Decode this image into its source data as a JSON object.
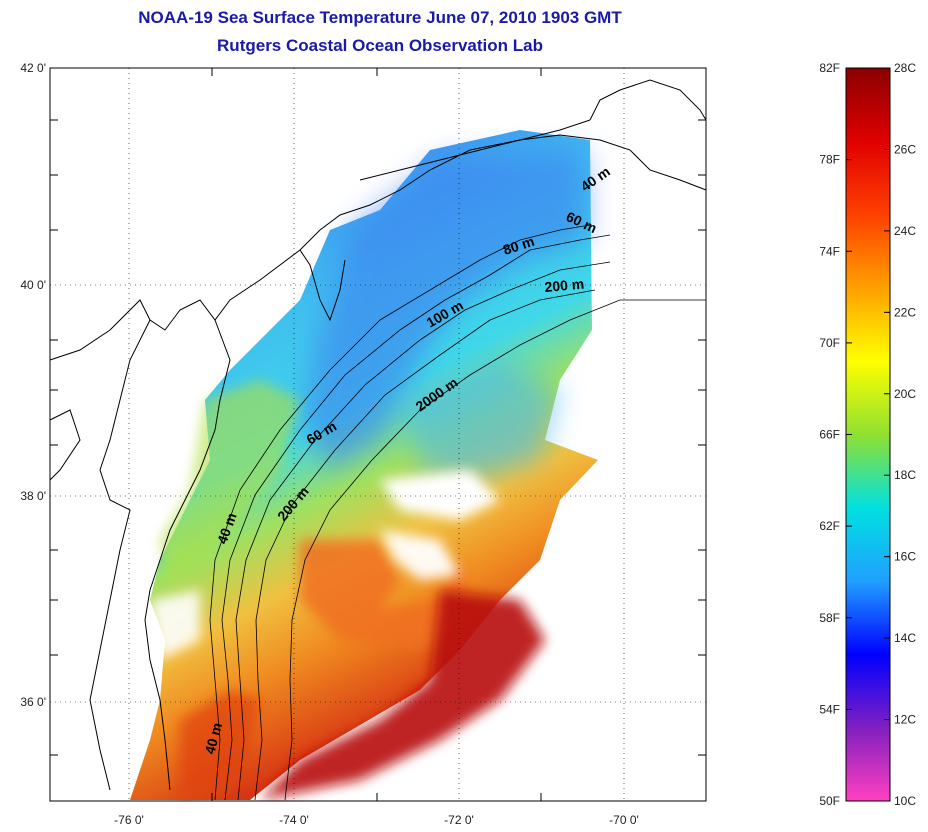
{
  "header": {
    "title_line1": "NOAA-19 Sea Surface Temperature June 07, 2010 1903 GMT",
    "title_line2": "Rutgers Coastal Ocean Observation Lab"
  },
  "axes": {
    "lat_labels": [
      "42 0'",
      "40 0'",
      "38 0'",
      "36 0'"
    ],
    "lon_labels": [
      "-76 0'",
      "-74 0'",
      "-72 0'",
      "-70 0'"
    ]
  },
  "isobaths": [
    "40 m",
    "60 m",
    "80 m",
    "200 m",
    "100 m",
    "2000 m",
    "60 m",
    "200 m",
    "40 m",
    "40 m"
  ],
  "colorbar": {
    "f_labels": [
      "82F",
      "78F",
      "74F",
      "70F",
      "66F",
      "62F",
      "58F",
      "54F",
      "50F"
    ],
    "c_labels": [
      "28C",
      "26C",
      "24C",
      "22C",
      "20C",
      "18C",
      "16C",
      "14C",
      "12C",
      "10C"
    ],
    "stops": [
      "#8b0000",
      "#e00000",
      "#ff4000",
      "#ffa000",
      "#ffff00",
      "#90e030",
      "#00e0e0",
      "#20a0ff",
      "#0000ff",
      "#8020c0",
      "#ff40c0"
    ]
  }
}
